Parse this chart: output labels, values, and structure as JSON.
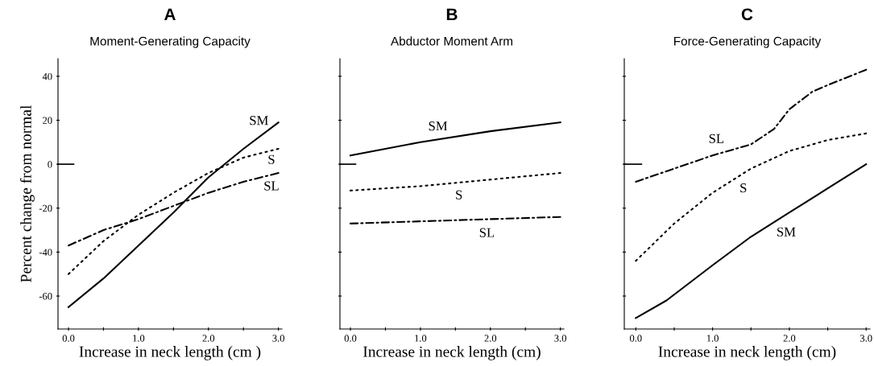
{
  "chart_data": [
    {
      "type": "line",
      "title": "A",
      "subtitle": "Moment-Generating Capacity",
      "xlabel": "Increase in neck length (cm )",
      "ylabel": "Percent change from normal",
      "xlim": [
        -0.15,
        3.05
      ],
      "ylim": [
        -75,
        48
      ],
      "xticks": [
        {
          "value": 0,
          "label": "0.0"
        },
        {
          "value": 0.5,
          "label": null
        },
        {
          "value": 1,
          "label": "1.0"
        },
        {
          "value": 1.5,
          "label": null
        },
        {
          "value": 2,
          "label": "2.0"
        },
        {
          "value": 2.5,
          "label": null
        },
        {
          "value": 3,
          "label": "3.0"
        }
      ],
      "yticks": [
        -60,
        -40,
        -20,
        0,
        20,
        40
      ],
      "x": [
        0,
        0.5,
        1.0,
        1.5,
        2.0,
        2.5,
        3.0
      ],
      "series": [
        {
          "name": "SM",
          "color": "#000000",
          "line_style": "solid",
          "values": [
            -65,
            -52,
            -37,
            -22,
            -6,
            7,
            19
          ]
        },
        {
          "name": "S",
          "color": "#000000",
          "line_style": "dotted",
          "values": [
            -50,
            -35,
            -23,
            -13,
            -4,
            3,
            7
          ]
        },
        {
          "name": "SL",
          "color": "#000000",
          "line_style": "dashdot",
          "values": [
            -37,
            -30,
            -25,
            -19,
            -13,
            -8,
            -4
          ]
        }
      ]
    },
    {
      "type": "line",
      "title": "B",
      "subtitle": "Abductor Moment Arm",
      "xlabel": "Increase in neck length (cm)",
      "tick_labels": "x",
      "xlim": [
        -0.15,
        3.05
      ],
      "ylim": [
        -75,
        48
      ],
      "xticks": [
        {
          "value": 0,
          "label": "0.0"
        },
        {
          "value": 0.5,
          "label": null
        },
        {
          "value": 1,
          "label": "1.0"
        },
        {
          "value": 1.5,
          "label": null
        },
        {
          "value": 2,
          "label": "2.0"
        },
        {
          "value": 2.5,
          "label": null
        },
        {
          "value": 3,
          "label": "3.0"
        }
      ],
      "yticks": [
        -60,
        -40,
        -20,
        0,
        20,
        40
      ],
      "x": [
        0,
        1.0,
        2.0,
        3.0
      ],
      "series": [
        {
          "name": "SM",
          "color": "#000000",
          "line_style": "solid",
          "values": [
            4,
            10,
            15,
            19
          ]
        },
        {
          "name": "S",
          "color": "#000000",
          "line_style": "dotted",
          "values": [
            -12,
            -10,
            -7,
            -4
          ]
        },
        {
          "name": "SL",
          "color": "#000000",
          "line_style": "dashdot",
          "values": [
            -27,
            -26,
            -25,
            -24
          ]
        }
      ]
    },
    {
      "type": "line",
      "title": "C",
      "subtitle": "Force-Generating Capacity",
      "xlabel": "Increase in neck length (cm)",
      "tick_labels": "x",
      "xlim": [
        -0.15,
        3.05
      ],
      "ylim": [
        -75,
        48
      ],
      "xticks": [
        {
          "value": 0,
          "label": "0.0"
        },
        {
          "value": 0.5,
          "label": null
        },
        {
          "value": 1,
          "label": "1.0"
        },
        {
          "value": 1.5,
          "label": null
        },
        {
          "value": 2,
          "label": "2.0"
        },
        {
          "value": 2.5,
          "label": null
        },
        {
          "value": 3,
          "label": "3.0"
        }
      ],
      "yticks": [
        -60,
        -40,
        -20,
        0,
        20,
        40
      ],
      "series": [
        {
          "name": "SM",
          "color": "#000000",
          "line_style": "solid",
          "x": [
            0,
            0.4,
            1.0,
            1.5,
            2.0,
            2.5,
            3.0
          ],
          "values": [
            -70,
            -62,
            -46,
            -33,
            -22,
            -11,
            0
          ]
        },
        {
          "name": "S",
          "color": "#000000",
          "line_style": "dotted",
          "x": [
            0,
            0.5,
            1.0,
            1.5,
            2.0,
            2.5,
            3.0
          ],
          "values": [
            -44,
            -27,
            -13,
            -2,
            6,
            11,
            14
          ]
        },
        {
          "name": "SL",
          "color": "#000000",
          "line_style": "dashdot",
          "x": [
            0,
            0.5,
            1.0,
            1.5,
            1.8,
            2.0,
            2.3,
            2.5,
            3.0
          ],
          "values": [
            -8,
            -2,
            4,
            9,
            16,
            25,
            33,
            36,
            43
          ]
        }
      ]
    }
  ]
}
